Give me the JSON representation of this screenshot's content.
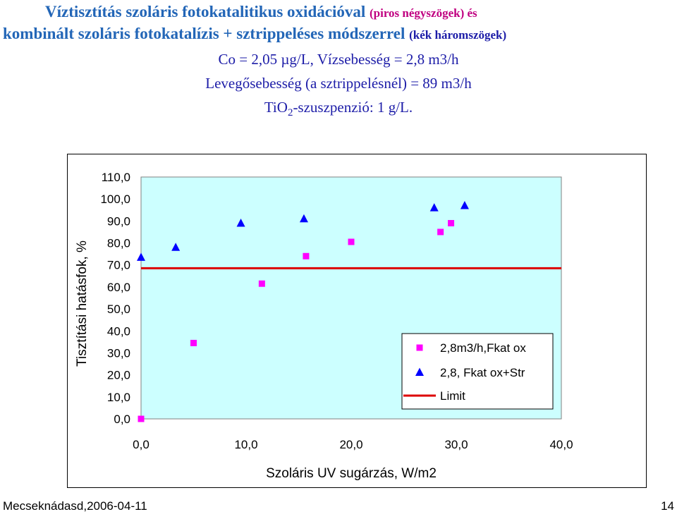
{
  "header": {
    "line1": "Víztisztítás szoláris fotokatalitikus oxidációval",
    "line1_note": "(piros négyszögek) és",
    "line2": "kombinált szoláris fotokatalízis + sztrippeléses módszerrel",
    "line2_note": "(kék háromszögek)",
    "line3": "Co = 2,05 µg/L, Vízsebesség = 2,8 m3/h",
    "line4": "Levegősebesség (a sztrippelésnél) = 89 m3/h",
    "line5_a": "TiO",
    "line5_sub": "2",
    "line5_b": "-szuszpenzió: 1 g/L."
  },
  "chart_data": {
    "type": "scatter",
    "xlabel": "Szoláris UV sugárzás, W/m2",
    "ylabel": "Tisztítási hatásfok, %",
    "xlim": [
      0,
      40
    ],
    "ylim": [
      0,
      110
    ],
    "x_ticks": [
      "0,0",
      "10,0",
      "20,0",
      "30,0",
      "40,0"
    ],
    "y_ticks": [
      "0,0",
      "10,0",
      "20,0",
      "30,0",
      "40,0",
      "50,0",
      "60,0",
      "70,0",
      "80,0",
      "90,0",
      "100,0",
      "110,0"
    ],
    "legend_position": "bottom-right",
    "series": [
      {
        "name": "2,8m3/h,Fkat ox",
        "marker": "square",
        "color": "#ff00ff",
        "points": [
          [
            0.0,
            0.0
          ],
          [
            5.0,
            34.5
          ],
          [
            11.5,
            61.5
          ],
          [
            15.7,
            74.0
          ],
          [
            20.0,
            80.5
          ],
          [
            28.5,
            85.0
          ],
          [
            29.5,
            89.0
          ]
        ]
      },
      {
        "name": "2,8, Fkat ox+Str",
        "marker": "triangle",
        "color": "#0000ff",
        "points": [
          [
            0.0,
            73.5
          ],
          [
            3.3,
            78.0
          ],
          [
            9.5,
            89.0
          ],
          [
            15.5,
            91.0
          ],
          [
            27.9,
            96.0
          ],
          [
            30.8,
            97.0
          ]
        ]
      }
    ],
    "limit": {
      "name": "Limit",
      "value": 68.5,
      "color": "#dd0000"
    },
    "plot_background": "#ccffff"
  },
  "footer": {
    "left": "Mecseknádasd,2006-04-11",
    "right": "14"
  }
}
